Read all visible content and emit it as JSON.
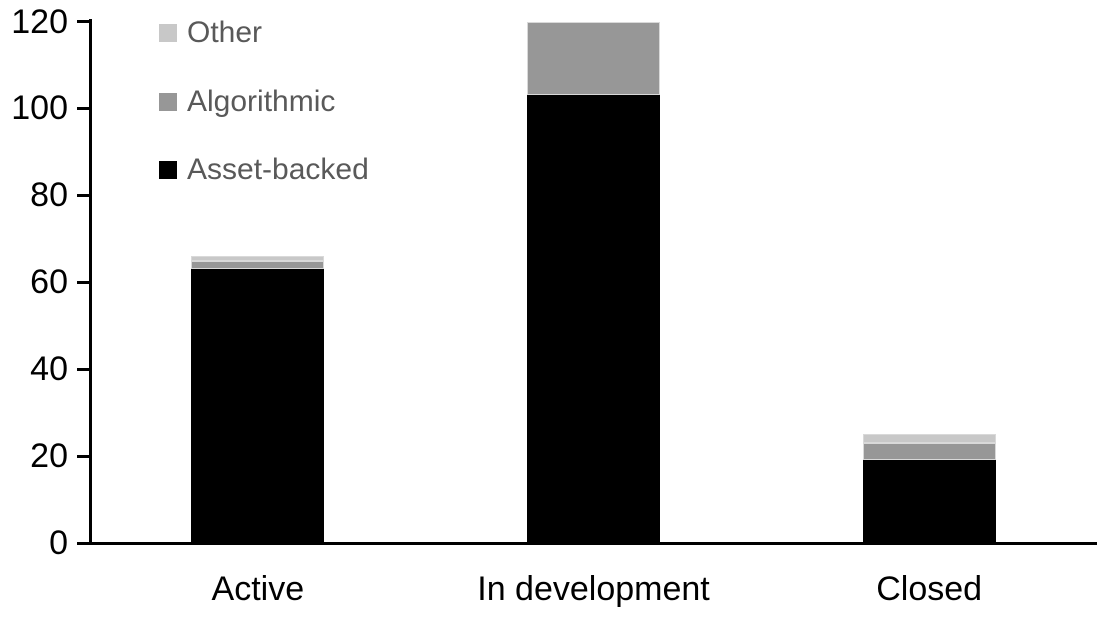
{
  "chart_data": {
    "type": "bar",
    "stacked": true,
    "title": "",
    "xlabel": "",
    "ylabel": "",
    "categories": [
      "Active",
      "In development",
      "Closed"
    ],
    "series": [
      {
        "name": "Asset-backed",
        "color": "#000000",
        "values": [
          63,
          103,
          19
        ]
      },
      {
        "name": "Algorithmic",
        "color": "#979797",
        "values": [
          2,
          17,
          4
        ]
      },
      {
        "name": "Other",
        "color": "#c8c8c8",
        "values": [
          1,
          0,
          2
        ]
      }
    ],
    "totals": [
      66,
      120,
      25
    ],
    "ylim": [
      0,
      120
    ],
    "yticks": [
      0,
      20,
      40,
      60,
      80,
      100,
      120
    ],
    "grid": false,
    "legend": {
      "position": "top-left",
      "items": [
        {
          "label": "Other",
          "color": "#c8c8c8"
        },
        {
          "label": "Algorithmic",
          "color": "#979797"
        },
        {
          "label": "Asset-backed",
          "color": "#000000"
        }
      ]
    },
    "colors": {
      "background": "#ffffff",
      "axis": "#000000",
      "tick_label_text": "#000000",
      "category_label_text": "#000000",
      "legend_text": "#595959",
      "segment_outline": "#d9d9d9"
    }
  }
}
